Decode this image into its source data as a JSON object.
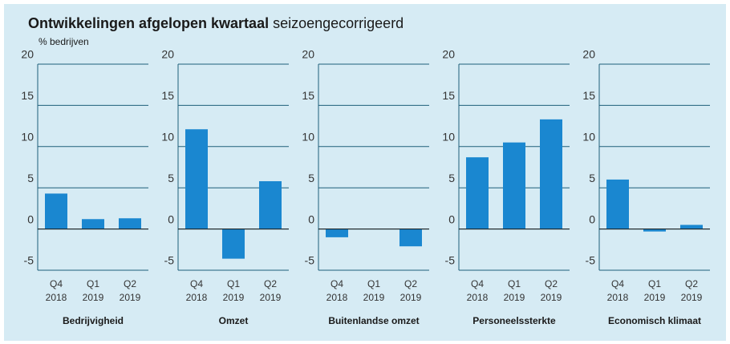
{
  "header": {
    "title": "Ontwikkelingen afgelopen kwartaal",
    "subtitle": "seizoengecorrigeerd",
    "unit": "% bedrijven"
  },
  "chart_data": [
    {
      "type": "bar",
      "title": "Bedrijvigheid",
      "categories": [
        "Q4 2018",
        "Q1 2019",
        "Q2 2019"
      ],
      "values": [
        4.3,
        1.2,
        1.3
      ],
      "color": "#1a87d0",
      "ylim": [
        -5,
        20
      ],
      "yticks": [
        -5,
        0,
        5,
        10,
        15,
        20
      ],
      "grid": true
    },
    {
      "type": "bar",
      "title": "Omzet",
      "categories": [
        "Q4 2018",
        "Q1 2019",
        "Q2 2019"
      ],
      "values": [
        12.1,
        -3.6,
        5.8
      ],
      "color": "#1a87d0",
      "ylim": [
        -5,
        20
      ],
      "yticks": [
        -5,
        0,
        5,
        10,
        15,
        20
      ],
      "grid": true
    },
    {
      "type": "bar",
      "title": "Buitenlandse omzet",
      "categories": [
        "Q4 2018",
        "Q1 2019",
        "Q2 2019"
      ],
      "values": [
        -1.0,
        0,
        -2.1
      ],
      "color": "#1a87d0",
      "ylim": [
        -5,
        20
      ],
      "yticks": [
        -5,
        0,
        5,
        10,
        15,
        20
      ],
      "grid": true
    },
    {
      "type": "bar",
      "title": "Personeelssterkte",
      "categories": [
        "Q4 2018",
        "Q1 2019",
        "Q2 2019"
      ],
      "values": [
        8.7,
        10.5,
        13.3
      ],
      "color": "#1a87d0",
      "ylim": [
        -5,
        20
      ],
      "yticks": [
        -5,
        0,
        5,
        10,
        15,
        20
      ],
      "grid": true
    },
    {
      "type": "bar",
      "title": "Economisch klimaat",
      "categories": [
        "Q4 2018",
        "Q1 2019",
        "Q2 2019"
      ],
      "values": [
        6.0,
        -0.3,
        0.5
      ],
      "color": "#1a87d0",
      "ylim": [
        -5,
        20
      ],
      "yticks": [
        -5,
        0,
        5,
        10,
        15,
        20
      ],
      "grid": true
    }
  ]
}
